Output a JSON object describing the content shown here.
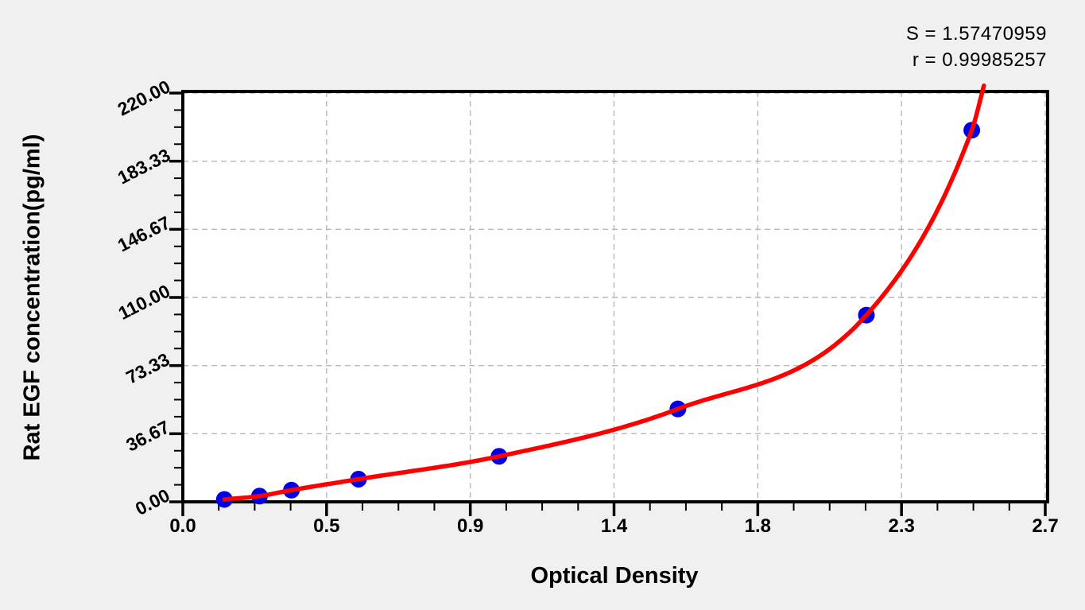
{
  "annotation": {
    "s_line": "S = 1.57470959",
    "r_line": "r = 0.99985257"
  },
  "chart_data": {
    "type": "scatter",
    "title": "",
    "xlabel": "Optical Density",
    "ylabel": "Rat EGF concentration(pg/ml)",
    "xlim": [
      0,
      2.72
    ],
    "ylim": [
      0,
      221
    ],
    "x_major_ticks": [
      0,
      0.45,
      0.9,
      1.35,
      1.8,
      2.25,
      2.7
    ],
    "x_ticklabels": [
      "0.0",
      "0.5",
      "0.9",
      "1.4",
      "1.8",
      "2.3",
      "2.7"
    ],
    "y_major_ticks": [
      0,
      36.667,
      73.333,
      110,
      146.667,
      183.333,
      220
    ],
    "y_ticklabels": [
      "0.00",
      "36.67",
      "73.33",
      "110.00",
      "146.67",
      "183.33",
      "220.00"
    ],
    "minor_ticks_between_majors": 3,
    "grid": "dashed gray lines at major ticks",
    "legend": "none",
    "series": [
      {
        "name": "standard-points",
        "type": "scatter",
        "marker": "circle",
        "color": "#0000e8",
        "x": [
          0.13,
          0.24,
          0.34,
          0.55,
          0.99,
          1.55,
          2.14,
          2.47
        ],
        "y": [
          1.3,
          3.1,
          6.3,
          12.2,
          24.5,
          50,
          100.5,
          200
        ]
      },
      {
        "name": "fit-curve",
        "type": "line",
        "color": "#fe0000",
        "note": "smooth fit through the standard points, extends past top frame",
        "end_x": 2.508,
        "end_y": 224
      }
    ],
    "fit_stats": {
      "S": "1.57470959",
      "r": "0.99985257"
    }
  },
  "colors": {
    "page_background": "#f0f0f0",
    "plot_background": "#ffffff",
    "frame": "#000000",
    "grid": "#b8b8b8",
    "curve": "#fe0000",
    "points": "#0000e8",
    "text": "#000000"
  }
}
